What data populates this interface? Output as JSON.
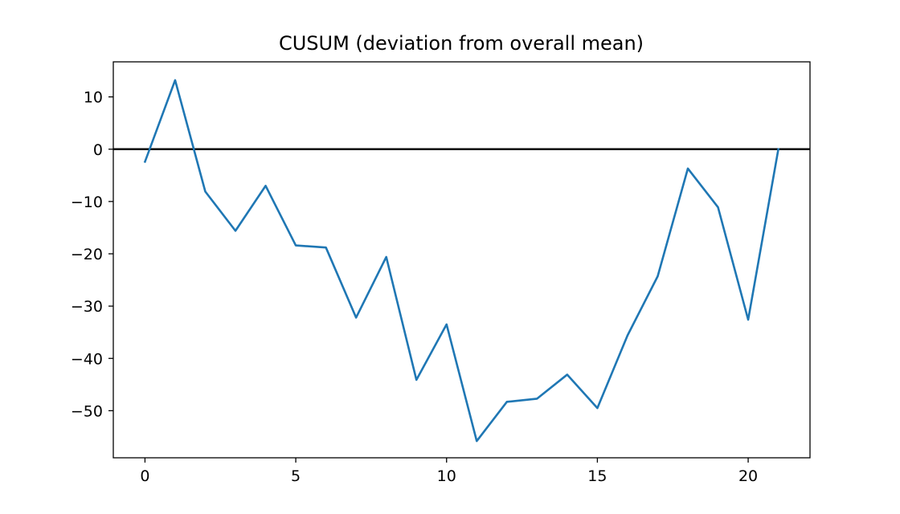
{
  "chart_data": {
    "type": "line",
    "title": "CUSUM (deviation from overall mean)",
    "xlabel": "",
    "ylabel": "",
    "xlim": [
      -1.05,
      22.05
    ],
    "ylim": [
      -59.0,
      16.7
    ],
    "xticks": [
      0,
      5,
      10,
      15,
      20
    ],
    "yticks": [
      10,
      0,
      -10,
      -20,
      -30,
      -40,
      -50
    ],
    "grid": false,
    "reference_line": {
      "y": 0,
      "color": "#000000"
    },
    "series": [
      {
        "color": "#1f77b4",
        "x": [
          0,
          1,
          2,
          3,
          4,
          5,
          6,
          7,
          8,
          9,
          10,
          11,
          12,
          13,
          14,
          15,
          16,
          17,
          18,
          19,
          20,
          21
        ],
        "y": [
          -2.4,
          13.2,
          -8.1,
          -15.6,
          -7.0,
          -18.4,
          -18.8,
          -32.2,
          -20.6,
          -44.1,
          -33.5,
          -55.8,
          -48.3,
          -47.7,
          -43.1,
          -49.5,
          -35.6,
          -24.3,
          -3.7,
          -11.1,
          -32.6,
          0.0
        ]
      }
    ]
  }
}
